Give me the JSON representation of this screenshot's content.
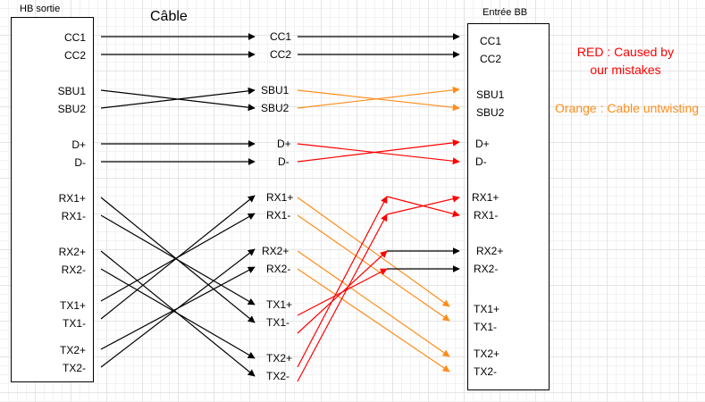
{
  "diagram": {
    "left_title": "HB sortie",
    "cable_title": "Câble",
    "right_title": "Entrée BB",
    "left_pins": [
      "CC1",
      "CC2",
      "SBU1",
      "SBU2",
      "D+",
      "D-",
      "RX1+",
      "RX1-",
      "RX2+",
      "RX2-",
      "TX1+",
      "TX1-",
      "TX2+",
      "TX2-"
    ],
    "mid_pins": [
      "CC1",
      "CC2",
      "SBU1",
      "SBU2",
      "D+",
      "D-",
      "RX1+",
      "RX1-",
      "RX2+",
      "RX2-",
      "TX1+",
      "TX1-",
      "TX2+",
      "TX2-"
    ],
    "right_pins": [
      "CC1",
      "CC2",
      "SBU1",
      "SBU2",
      "D+",
      "D-",
      "RX1+",
      "RX1-",
      "RX2+",
      "RX2-",
      "TX1+",
      "TX1-",
      "TX2+",
      "TX2-"
    ],
    "legend_red_line1": "RED : Caused by",
    "legend_red_line2": "our mistakes",
    "legend_orange": "Orange : Cable untwisting",
    "colors": {
      "black": "#000000",
      "red": "#ff0000",
      "orange": "#ff8c1a"
    },
    "cable_connections": [
      [
        "CC1",
        "CC1"
      ],
      [
        "CC2",
        "CC2"
      ],
      [
        "SBU1",
        "SBU2"
      ],
      [
        "SBU2",
        "SBU1"
      ],
      [
        "D+",
        "D+"
      ],
      [
        "D-",
        "D-"
      ],
      [
        "RX1+",
        "TX1-"
      ],
      [
        "RX1-",
        "TX1+"
      ],
      [
        "RX2+",
        "TX2-"
      ],
      [
        "RX2-",
        "TX2+"
      ],
      [
        "TX1+",
        "RX1-"
      ],
      [
        "TX1-",
        "RX1+"
      ],
      [
        "TX2+",
        "RX2-"
      ],
      [
        "TX2-",
        "RX2+"
      ]
    ],
    "board_connections": [
      {
        "from": "CC1",
        "to": "CC1",
        "color": "black"
      },
      {
        "from": "CC2",
        "to": "CC2",
        "color": "black"
      },
      {
        "from": "SBU1",
        "to": "SBU2",
        "color": "orange"
      },
      {
        "from": "SBU2",
        "to": "SBU1",
        "color": "orange"
      },
      {
        "from": "D+",
        "to": "D-",
        "color": "red"
      },
      {
        "from": "D-",
        "to": "D+",
        "color": "red"
      },
      {
        "from": "RX1+",
        "to": "TX1+",
        "color": "orange"
      },
      {
        "from": "RX1-",
        "to": "TX1-",
        "color": "orange"
      },
      {
        "from": "RX2+",
        "to": "TX2+",
        "color": "orange"
      },
      {
        "from": "RX2-",
        "to": "TX2-",
        "color": "orange"
      },
      {
        "from": "TX1+",
        "to": "RX2-",
        "color": "red"
      },
      {
        "from": "TX1-",
        "to": "RX2+",
        "color": "red"
      },
      {
        "from": "TX2+",
        "to": "RX1+",
        "color": "red"
      },
      {
        "from": "TX2-",
        "to": "RX1-",
        "color": "red"
      }
    ]
  }
}
